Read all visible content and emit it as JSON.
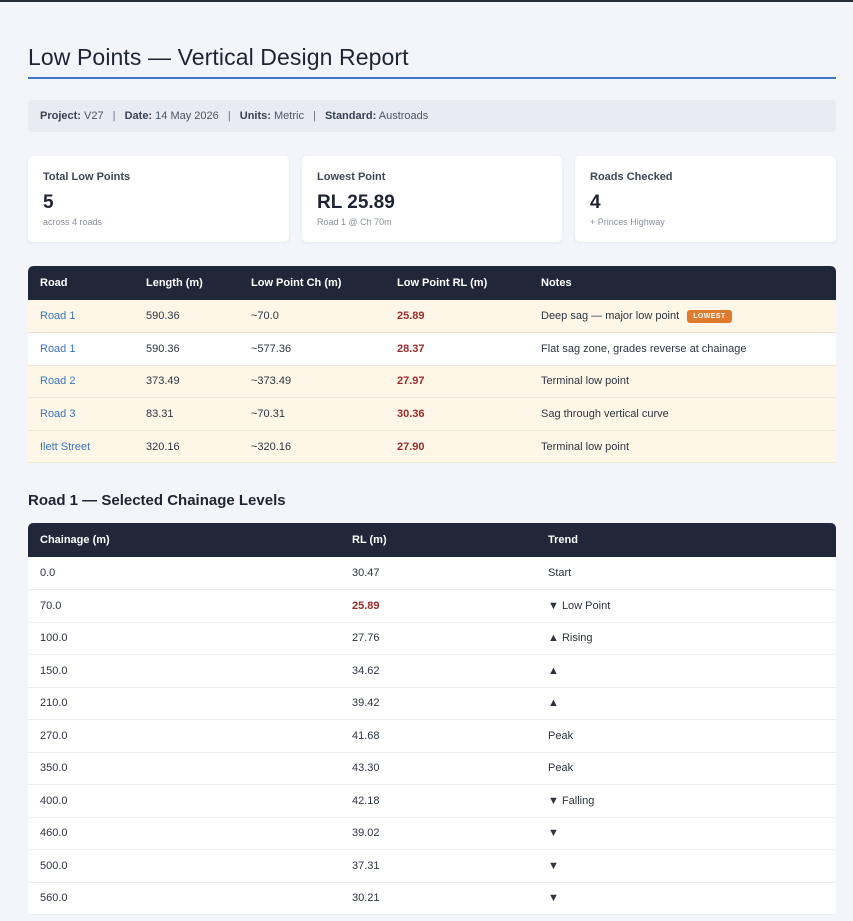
{
  "title": "Low Points — Vertical Design Report",
  "meta": [
    {
      "label": "Project:",
      "value": "V27"
    },
    {
      "label": "Date:",
      "value": "14 May 2026"
    },
    {
      "label": "Units:",
      "value": "Metric"
    },
    {
      "label": "Standard:",
      "value": "Austroads"
    }
  ],
  "cards": [
    {
      "label": "Total Low Points",
      "value": "5",
      "sub": "across 4 roads"
    },
    {
      "label": "Lowest Point",
      "value": "RL 25.89",
      "sub": "Road 1 @ Ch 70m"
    },
    {
      "label": "Roads Checked",
      "value": "4",
      "sub": "+ Princes Highway"
    }
  ],
  "low_points_table": {
    "columns": [
      "Road",
      "Length (m)",
      "Low Point Ch (m)",
      "Low Point RL (m)",
      "Notes"
    ],
    "rows": [
      {
        "road": "Road 1",
        "length": "590.36",
        "ch": "~70.0",
        "rl": "25.89",
        "notes": "Deep sag — major low point",
        "badge": "LOWEST",
        "highlight": true
      },
      {
        "road": "Road 1",
        "length": "590.36",
        "ch": "~577.36",
        "rl": "28.37",
        "notes": "Flat sag zone, grades reverse at chainage",
        "badge": "",
        "highlight": false
      },
      {
        "road": "Road 2",
        "length": "373.49",
        "ch": "~373.49",
        "rl": "27.97",
        "notes": "Terminal low point",
        "badge": "",
        "highlight": true
      },
      {
        "road": "Road 3",
        "length": "83.31",
        "ch": "~70.31",
        "rl": "30.36",
        "notes": "Sag through vertical curve",
        "badge": "",
        "highlight": true
      },
      {
        "road": "Ilett Street",
        "length": "320.16",
        "ch": "~320.16",
        "rl": "27.90",
        "notes": "Terminal low point",
        "badge": "",
        "highlight": true
      }
    ]
  },
  "chainage_section": {
    "title": "Road 1 — Selected Chainage Levels",
    "columns": [
      "Chainage (m)",
      "RL (m)",
      "Trend"
    ],
    "rows": [
      {
        "ch": "0.0",
        "rl": "30.47",
        "trend": "Start",
        "low": false
      },
      {
        "ch": "70.0",
        "rl": "25.89",
        "trend": "▼ Low Point",
        "low": true
      },
      {
        "ch": "100.0",
        "rl": "27.76",
        "trend": "▲ Rising",
        "low": false
      },
      {
        "ch": "150.0",
        "rl": "34.62",
        "trend": "▲",
        "low": false
      },
      {
        "ch": "210.0",
        "rl": "39.42",
        "trend": "▲",
        "low": false
      },
      {
        "ch": "270.0",
        "rl": "41.68",
        "trend": "Peak",
        "low": false
      },
      {
        "ch": "350.0",
        "rl": "43.30",
        "trend": "Peak",
        "low": false
      },
      {
        "ch": "400.0",
        "rl": "42.18",
        "trend": "▼ Falling",
        "low": false
      },
      {
        "ch": "460.0",
        "rl": "39.02",
        "trend": "▼",
        "low": false
      },
      {
        "ch": "500.0",
        "rl": "37.31",
        "trend": "▼",
        "low": false
      },
      {
        "ch": "560.0",
        "rl": "30.21",
        "trend": "▼",
        "low": false
      }
    ]
  },
  "colors": {
    "accent": "#3d78c5",
    "header": "#1f2738",
    "low_rl": "#9b2c2c",
    "badge": "#e07b2e",
    "highlight_row": "#fef7e8"
  }
}
